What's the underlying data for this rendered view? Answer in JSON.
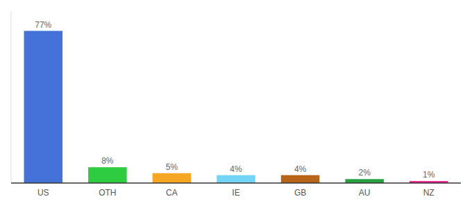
{
  "chart_data": {
    "type": "bar",
    "categories": [
      "US",
      "OTH",
      "CA",
      "IE",
      "GB",
      "AU",
      "NZ"
    ],
    "values": [
      77,
      8,
      5,
      4,
      4,
      2,
      1
    ],
    "value_labels": [
      "77%",
      "8%",
      "5%",
      "4%",
      "4%",
      "2%",
      "1%"
    ],
    "data_labels": true,
    "colors": [
      "#4472d9",
      "#2ecc40",
      "#f5a623",
      "#74d4f5",
      "#b8651a",
      "#27a040",
      "#e91e8c"
    ],
    "ylim": [
      0,
      87
    ],
    "tick_labels": "x",
    "grid": false
  }
}
